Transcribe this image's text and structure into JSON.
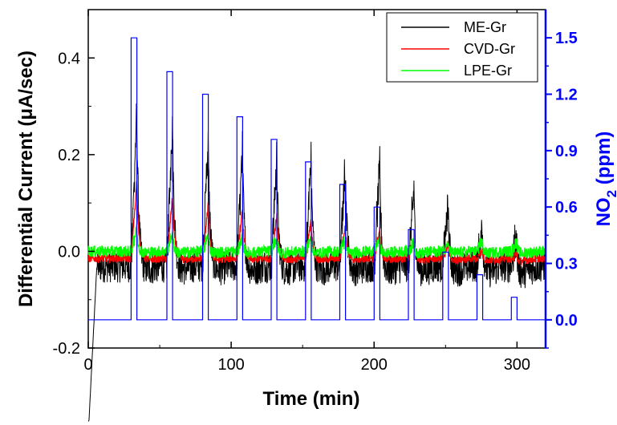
{
  "chart_data": {
    "type": "line",
    "x_axis": {
      "label": "Time (min)",
      "range": [
        0,
        320
      ],
      "ticks": [
        0,
        100,
        200,
        300
      ],
      "tick_labels": [
        "0",
        "100",
        "200",
        "300"
      ]
    },
    "y_axis_left": {
      "label": "Differential Current (μA/sec)",
      "range": [
        -0.2,
        0.5
      ],
      "ticks": [
        -0.2,
        0.0,
        0.2,
        0.4
      ],
      "tick_labels": [
        "-0.2",
        "0.0",
        "0.2",
        "0.4"
      ]
    },
    "y_axis_right": {
      "label_main": "NO",
      "label_sub": "2",
      "label_tail": " (ppm)",
      "range": [
        -0.15,
        1.65
      ],
      "ticks": [
        0.0,
        0.3,
        0.6,
        0.9,
        1.2,
        1.5
      ],
      "tick_labels": [
        "0.0",
        "0.3",
        "0.6",
        "0.9",
        "1.2",
        "1.5"
      ],
      "color": "#0000ff"
    },
    "legend": {
      "placement": "top-right",
      "entries": [
        {
          "name": "ME-Gr",
          "color": "#000000"
        },
        {
          "name": "CVD-Gr",
          "color": "#ff0000"
        },
        {
          "name": "LPE-Gr",
          "color": "#00ff00"
        }
      ]
    },
    "no2_pulses": [
      {
        "start": 30,
        "end": 34,
        "ppm": 1.5
      },
      {
        "start": 55,
        "end": 59,
        "ppm": 1.32
      },
      {
        "start": 80,
        "end": 84,
        "ppm": 1.2
      },
      {
        "start": 104,
        "end": 108,
        "ppm": 1.08
      },
      {
        "start": 128,
        "end": 132,
        "ppm": 0.96
      },
      {
        "start": 152,
        "end": 156,
        "ppm": 0.84
      },
      {
        "start": 176,
        "end": 180,
        "ppm": 0.72
      },
      {
        "start": 200,
        "end": 204,
        "ppm": 0.6
      },
      {
        "start": 224,
        "end": 228,
        "ppm": 0.48
      },
      {
        "start": 248,
        "end": 252,
        "ppm": 0.36
      },
      {
        "start": 272,
        "end": 276,
        "ppm": 0.24
      },
      {
        "start": 296,
        "end": 300,
        "ppm": 0.12
      }
    ],
    "series": [
      {
        "name": "ME-Gr",
        "color": "#000000",
        "baseline": -0.03,
        "noise": 0.035,
        "peaks": [
          0.33,
          0.31,
          0.27,
          0.25,
          0.23,
          0.23,
          0.22,
          0.21,
          0.16,
          0.13,
          0.09,
          0.06
        ]
      },
      {
        "name": "CVD-Gr",
        "color": "#ff0000",
        "baseline": -0.015,
        "noise": 0.008,
        "peaks": [
          0.16,
          0.13,
          0.11,
          0.1,
          0.09,
          0.08,
          0.07,
          0.06,
          0.04,
          0.03,
          0.02,
          0.01
        ]
      },
      {
        "name": "LPE-Gr",
        "color": "#00ff00",
        "baseline": 0.0,
        "noise": 0.012,
        "peaks": [
          0.05,
          0.04,
          0.035,
          0.03,
          0.03,
          0.03,
          0.025,
          0.025,
          0.02,
          0.02,
          0.02,
          0.02
        ]
      }
    ]
  }
}
